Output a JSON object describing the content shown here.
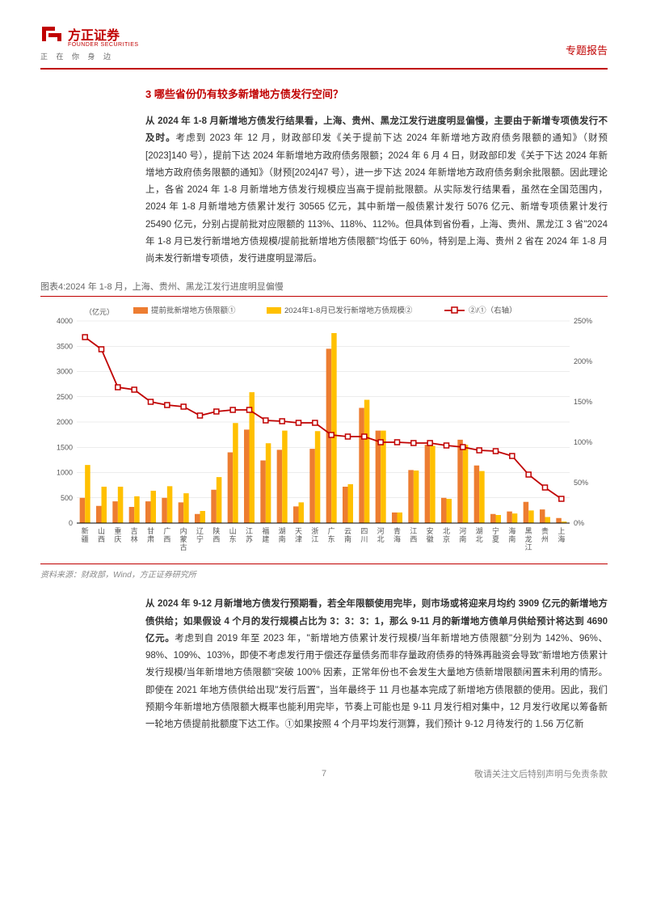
{
  "header": {
    "logo_cn": "方正证券",
    "logo_en": "FOUNDER SECURITIES",
    "tagline": "正 在 你 身 边",
    "doc_type": "专题报告"
  },
  "section_title": "3 哪些省份仍有较多新增地方债发行空间？",
  "para1_bold": "从 2024 年 1-8 月新增地方债发行结果看，上海、贵州、黑龙江发行进度明显偏慢，主要由于新增专项债发行不及时。",
  "para1_rest": "考虑到 2023 年 12 月，财政部印发《关于提前下达 2024 年新增地方政府债务限额的通知》（财预[2023]140 号），提前下达 2024 年新增地方政府债务限额；2024 年 6 月 4 日，财政部印发《关于下达 2024 年新增地方政府债务限额的通知》（财预[2024]47 号），进一步下达 2024 年新增地方政府债务剩余批限额。因此理论上，各省 2024 年 1-8 月新增地方债发行规模应当高于提前批限额。从实际发行结果看，虽然在全国范围内，2024 年 1-8 月新增地方债累计发行 30565 亿元，其中新增一般债累计发行 5076 亿元、新增专项债累计发行 25490 亿元，分别占提前批对应限额的 113%、118%、112%。但具体到省份看，上海、贵州、黑龙江 3 省\"2024 年 1-8 月已发行新增地方债规模/提前批新增地方债限额\"均低于 60%，特别是上海、贵州 2 省在 2024 年 1-8 月尚未发行新增专项债，发行进度明显滞后。",
  "chart": {
    "caption": "图表4:2024 年 1-8 月，上海、贵州、黑龙江发行进度明显偏慢",
    "source": "资料来源：财政部，Wind，方正证券研究所",
    "y_left_unit": "（亿元）",
    "y_right_unit_suffix": "%",
    "legend": {
      "bar1": "提前批新增地方债限额①",
      "bar2": "2024年1-8月已发行新增地方债规模②",
      "line": "②/①（右轴）"
    },
    "y_left": {
      "min": 0,
      "max": 4000,
      "step": 500
    },
    "y_right": {
      "min": 0,
      "max": 250,
      "step": 50
    },
    "categories": [
      "新疆",
      "山西",
      "重庆",
      "吉林",
      "甘肃",
      "广西",
      "内蒙古",
      "辽宁",
      "陕西",
      "山东",
      "江苏",
      "福建",
      "湖南",
      "天津",
      "浙江",
      "广东",
      "云南",
      "四川",
      "河北",
      "青海",
      "江西",
      "安徽",
      "北京",
      "河南",
      "湖北",
      "宁夏",
      "海南",
      "黑龙江",
      "贵州",
      "上海"
    ],
    "bar1_values": [
      500,
      340,
      430,
      320,
      430,
      500,
      410,
      180,
      660,
      1400,
      1850,
      1240,
      1450,
      330,
      1470,
      3450,
      720,
      2280,
      1830,
      210,
      1050,
      1550,
      500,
      1650,
      1140,
      180,
      230,
      420,
      270,
      100
    ],
    "bar2_values": [
      1150,
      720,
      720,
      530,
      640,
      730,
      590,
      240,
      910,
      1980,
      2590,
      1580,
      1830,
      410,
      1820,
      3760,
      770,
      2440,
      1830,
      210,
      1040,
      1530,
      480,
      1550,
      1030,
      160,
      190,
      250,
      120,
      30
    ],
    "line_values": [
      230,
      215,
      168,
      165,
      150,
      146,
      144,
      133,
      138,
      140,
      140,
      127,
      126,
      124,
      124,
      109,
      107,
      107,
      100,
      100,
      99,
      99,
      96,
      94,
      90,
      89,
      83,
      60,
      44,
      30
    ],
    "colors": {
      "bar1": "#ed7d31",
      "bar2": "#ffc000",
      "line": "#c00000",
      "grid": "#d9d9d9",
      "axis": "#000000",
      "bg": "#ffffff"
    }
  },
  "para2_bold": "从 2024 年 9-12 月新增地方债发行预期看，若全年限额使用完毕，则市场或将迎来月均约 3909 亿元的新增地方债供给；如果假设 4 个月的发行规模占比为 3：3：3：1，那么 9-11 月的新增地方债单月供给预计将达到 4690 亿元。",
  "para2_rest": "考虑到自 2019 年至 2023 年，\"新增地方债累计发行规模/当年新增地方债限额\"分别为 142%、96%、98%、109%、103%，即使不考虑发行用于偿还存量债务而非存量政府债券的特殊再融资会导致\"新增地方债累计发行规模/当年新增地方债限额\"突破 100% 因素，正常年份也不会发生大量地方债新增限额闲置未利用的情形。即使在 2021 年地方债供给出现\"发行后置\"，当年最终于 11 月也基本完成了新增地方债限额的使用。因此，我们预期今年新增地方债限额大概率也能利用完毕，节奏上可能也是 9-11 月发行相对集中，12 月发行收尾以筹备新一轮地方债提前批额度下达工作。①如果按照 4 个月平均发行测算，我们预计 9-12 月待发行的 1.56 万亿新",
  "footer": {
    "page": "7",
    "disclaim": "敬请关注文后特别声明与免责条款"
  }
}
